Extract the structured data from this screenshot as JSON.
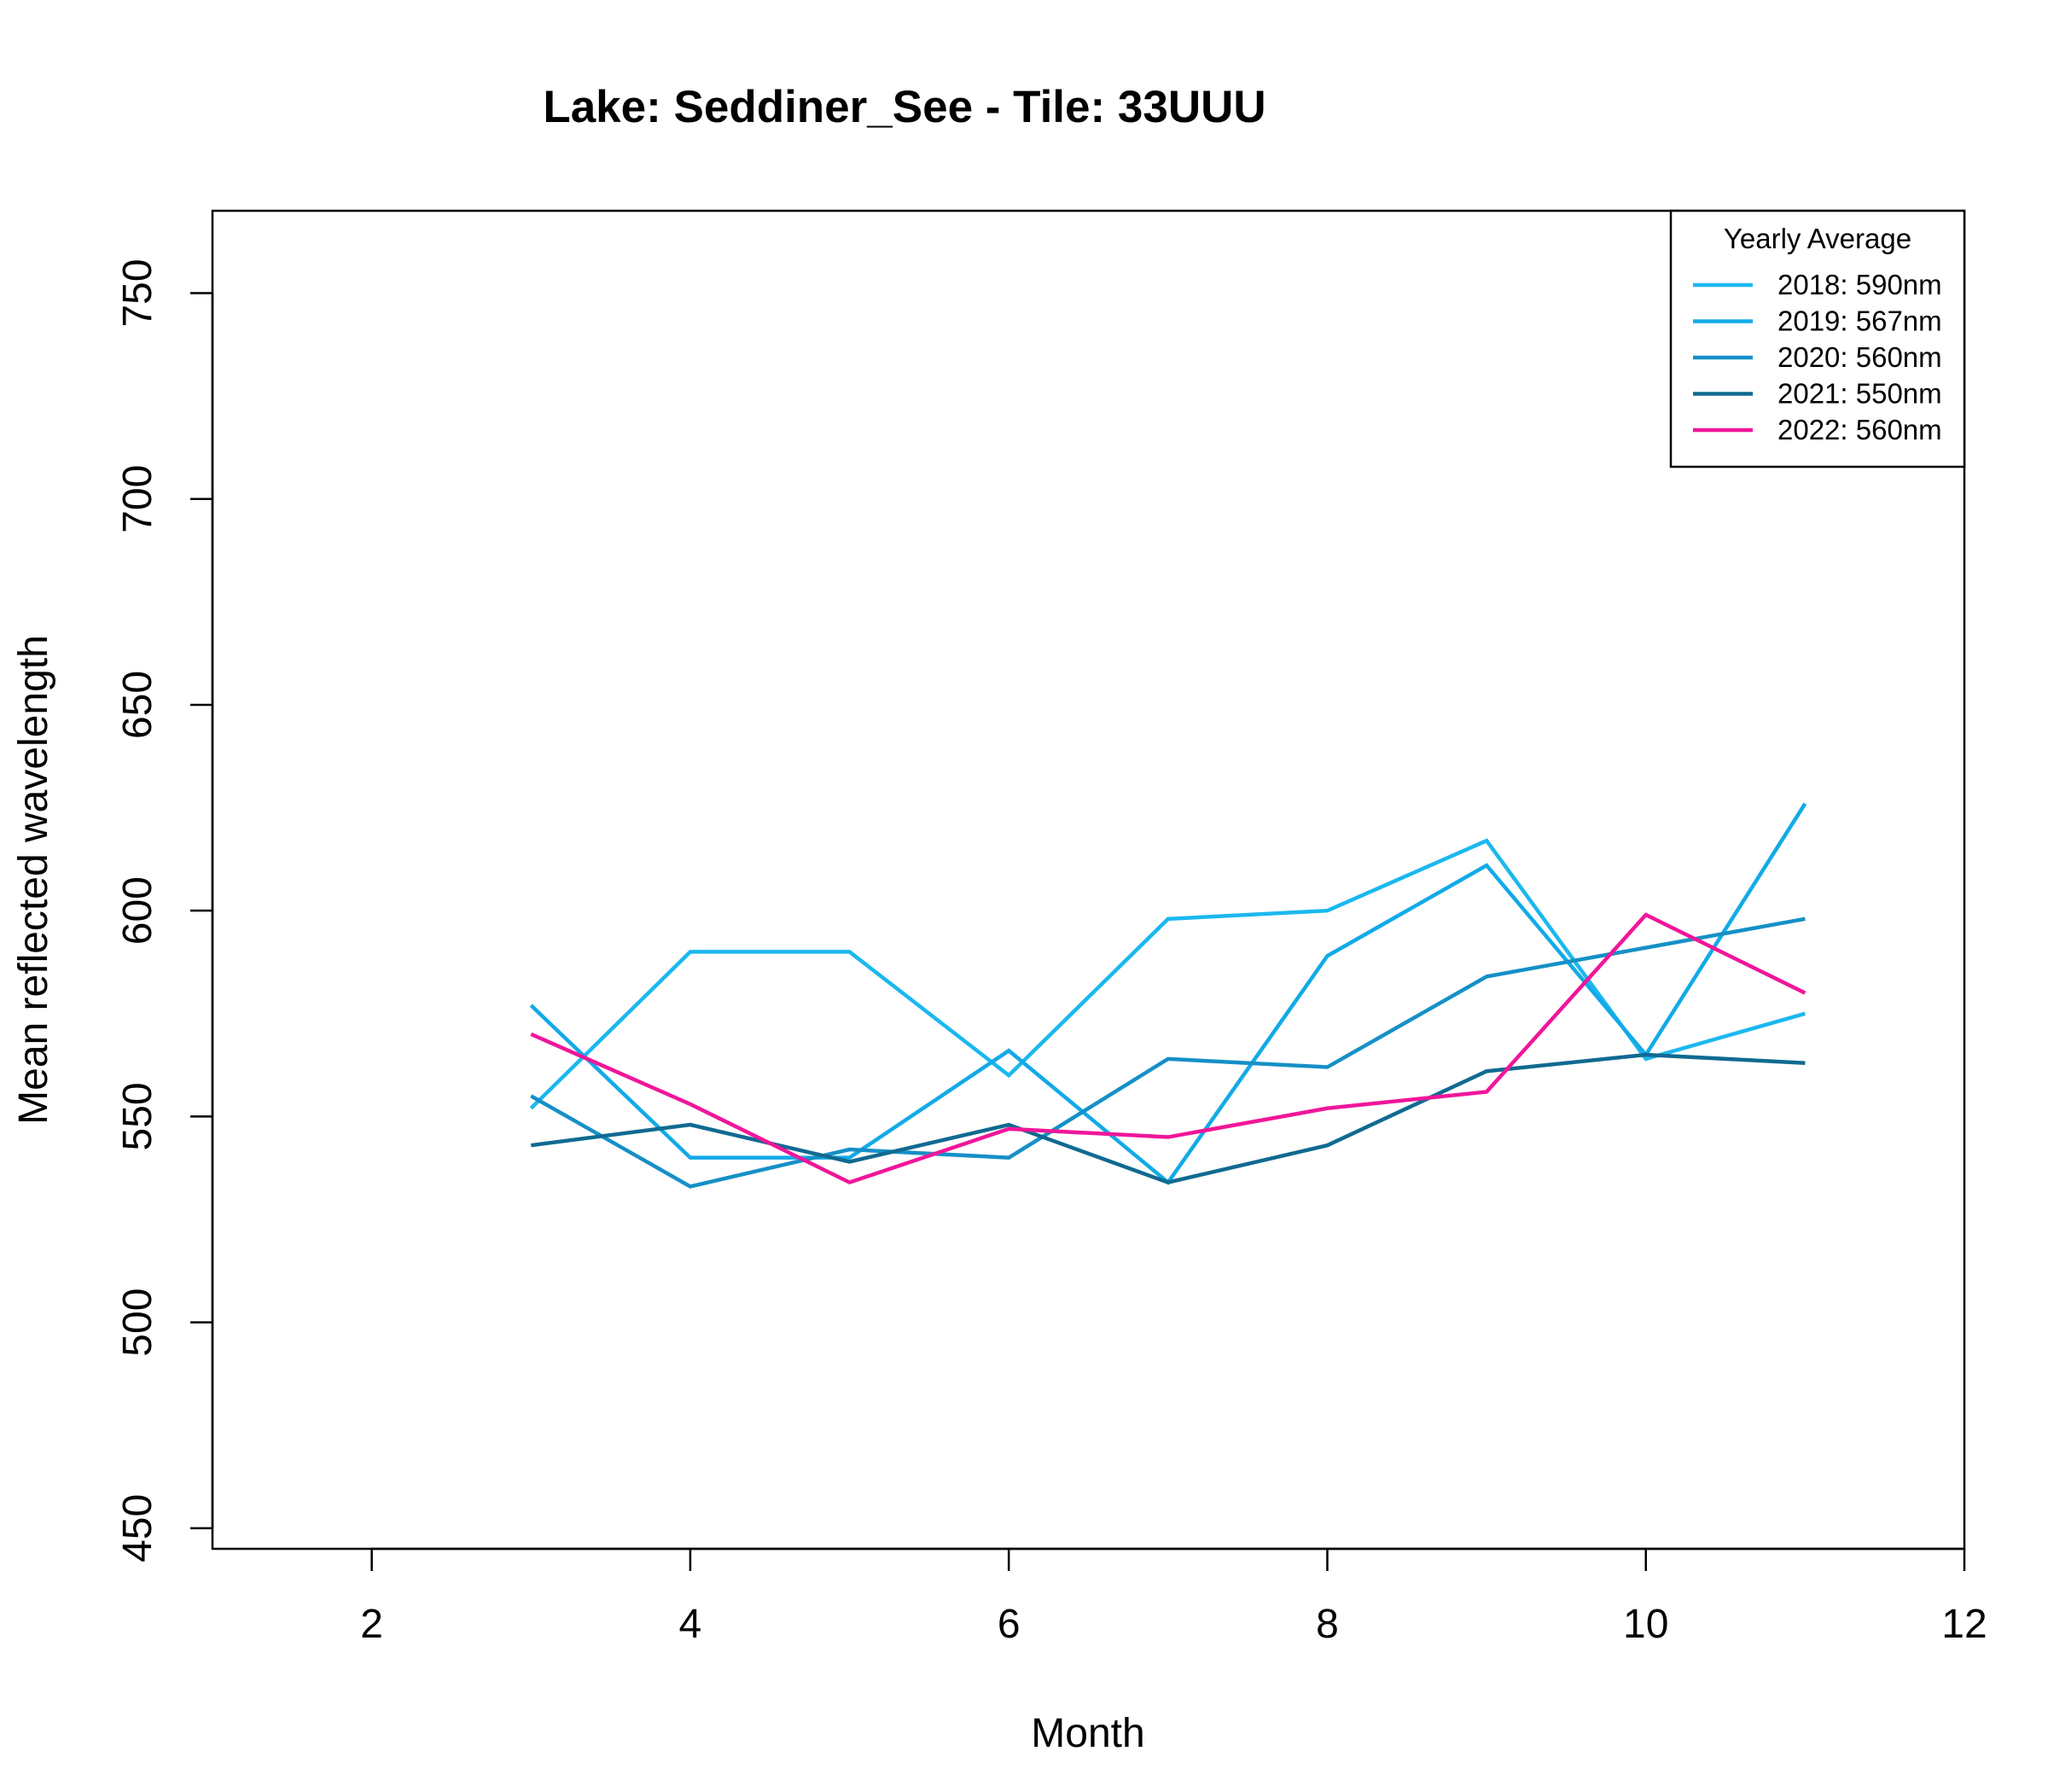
{
  "chart_data": {
    "type": "line",
    "title": "Lake: Seddiner_See  - Tile: 33UUU",
    "xlabel": "Month",
    "ylabel": "Mean reflected wavelength",
    "xlim": [
      1,
      12
    ],
    "ylim": [
      445,
      770
    ],
    "xticks": [
      2,
      4,
      6,
      8,
      10,
      12
    ],
    "yticks": [
      450,
      500,
      550,
      600,
      650,
      700,
      750
    ],
    "grid": false,
    "legend": {
      "title": "Yearly Average",
      "position": "top-right"
    },
    "x": [
      3,
      4,
      5,
      6,
      7,
      8,
      9,
      10,
      11
    ],
    "series": [
      {
        "name": "2018: 590nm",
        "color": "#1ab8ef",
        "values": [
          552,
          590,
          590,
          560,
          598,
          600,
          617,
          564,
          575
        ]
      },
      {
        "name": "2019: 567nm",
        "color": "#12aae8",
        "values": [
          577,
          540,
          540,
          566,
          534,
          589,
          611,
          565,
          626
        ]
      },
      {
        "name": "2020: 560nm",
        "color": "#1590c6",
        "values": [
          555,
          533,
          542,
          540,
          564,
          562,
          584,
          591,
          598
        ]
      },
      {
        "name": "2021: 550nm",
        "color": "#106a91",
        "values": [
          543,
          548,
          539,
          548,
          534,
          543,
          561,
          565,
          563
        ]
      },
      {
        "name": "2022: 560nm",
        "color": "#f0169a",
        "values": [
          570,
          553,
          534,
          547,
          545,
          552,
          556,
          599,
          580
        ]
      }
    ]
  }
}
